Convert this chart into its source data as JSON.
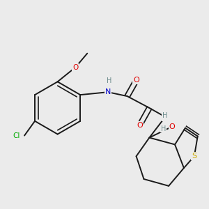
{
  "bg_color": "#ebebeb",
  "bond_color": "#1a1a1a",
  "atom_colors": {
    "O": "#e00000",
    "N": "#0000cc",
    "S": "#ccaa00",
    "Cl": "#00aa00",
    "C": "#1a1a1a",
    "H": "#6a8a8a"
  }
}
